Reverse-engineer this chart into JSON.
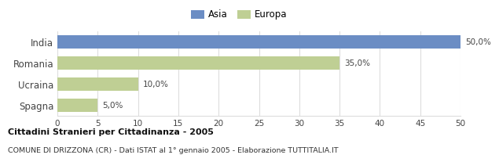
{
  "categories": [
    "India",
    "Romania",
    "Ucraina",
    "Spagna"
  ],
  "values": [
    50.0,
    35.0,
    10.0,
    5.0
  ],
  "colors": [
    "#6b8dc4",
    "#bfcf94",
    "#bfcf94",
    "#bfcf94"
  ],
  "labels": [
    "50,0%",
    "35,0%",
    "10,0%",
    "5,0%"
  ],
  "legend": [
    {
      "label": "Asia",
      "color": "#6b8dc4"
    },
    {
      "label": "Europa",
      "color": "#bfcf94"
    }
  ],
  "xlim": [
    0,
    50
  ],
  "xticks": [
    0,
    5,
    10,
    15,
    20,
    25,
    30,
    35,
    40,
    45,
    50
  ],
  "title": "Cittadini Stranieri per Cittadinanza - 2005",
  "subtitle": "COMUNE DI DRIZZONA (CR) - Dati ISTAT al 1° gennaio 2005 - Elaborazione TUTTITALIA.IT",
  "background_color": "#ffffff",
  "bar_height": 0.6,
  "grid_color": "#dddddd"
}
